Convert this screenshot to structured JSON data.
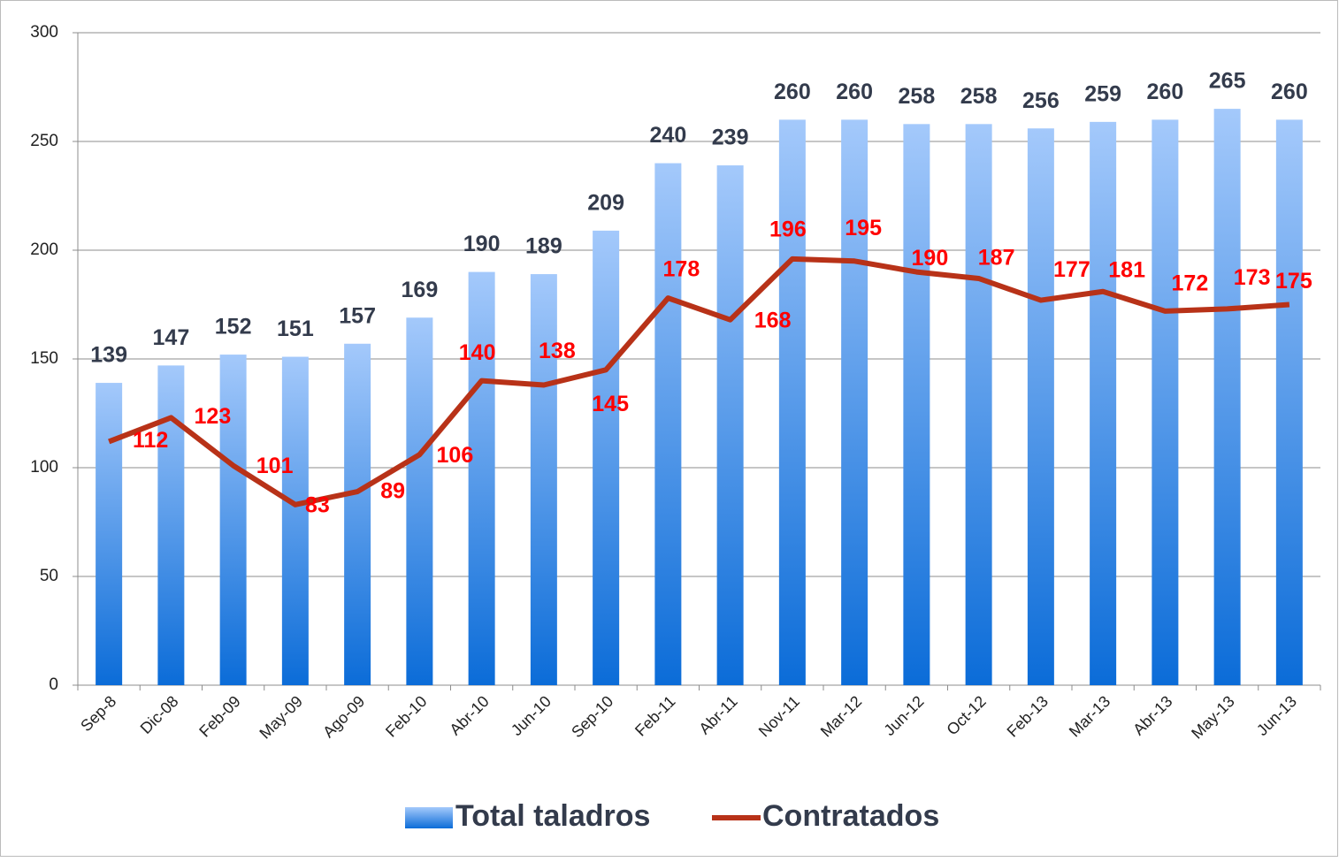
{
  "chart_data": {
    "type": "bar_line",
    "categories": [
      "Sep-8",
      "Dic-08",
      "Feb-09",
      "May-09",
      "Ago-09",
      "Feb-10",
      "Abr-10",
      "Jun-10",
      "Sep-10",
      "Feb-11",
      "Abr-11",
      "Nov-11",
      "Mar-12",
      "Jun-12",
      "Oct-12",
      "Feb-13",
      "Mar-13",
      "Abr-13",
      "May-13",
      "Jun-13"
    ],
    "series": [
      {
        "name": "Total taladros",
        "type": "bar",
        "color": "#3b8ae8",
        "values": [
          139,
          147,
          152,
          151,
          157,
          169,
          190,
          189,
          209,
          240,
          239,
          260,
          260,
          258,
          258,
          256,
          259,
          260,
          265,
          260
        ]
      },
      {
        "name": "Contratados",
        "type": "line",
        "color": "#b83218",
        "values": [
          112,
          123,
          101,
          83,
          89,
          106,
          140,
          138,
          145,
          178,
          168,
          196,
          195,
          190,
          187,
          177,
          181,
          172,
          173,
          175
        ]
      }
    ],
    "ylim": [
      0,
      300
    ],
    "yticks": [
      0,
      50,
      100,
      150,
      200,
      250,
      300
    ],
    "grid": true,
    "legend": "bottom"
  }
}
